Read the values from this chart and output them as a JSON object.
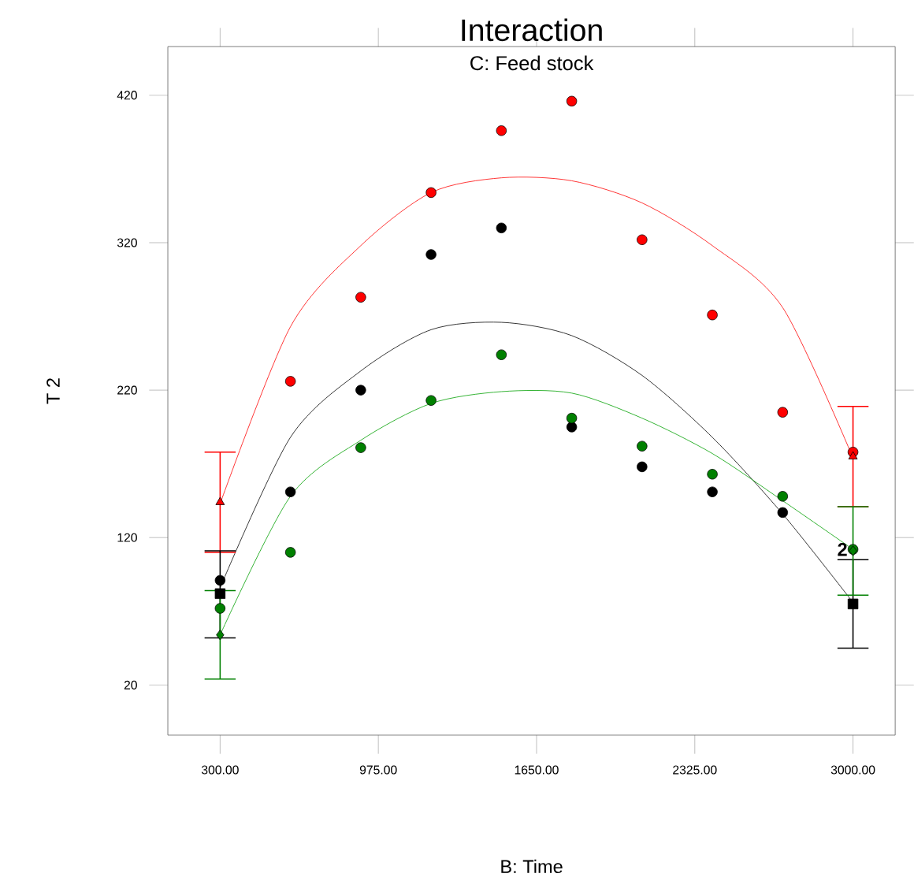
{
  "chart_data": {
    "type": "scatter",
    "title": "Interaction",
    "subtitle": "C: Feed stock",
    "xlabel": "B: Time",
    "ylabel": "T 2",
    "xlim": [
      77,
      3180
    ],
    "ylim": [
      -14,
      453
    ],
    "xticks": [
      {
        "value": 300,
        "label": "300.00"
      },
      {
        "value": 975,
        "label": "975.00"
      },
      {
        "value": 1650,
        "label": "1650.00"
      },
      {
        "value": 2325,
        "label": "2325.00"
      },
      {
        "value": 3000,
        "label": "3000.00"
      }
    ],
    "yticks": [
      20,
      120,
      220,
      320,
      420
    ],
    "grid": false,
    "annotations": [
      {
        "text": "2",
        "x": 3000,
        "y": 112
      }
    ],
    "series": [
      {
        "type": "line",
        "marker": "none",
        "color": "#ff0000",
        "x": [
          300,
          600,
          900,
          1200,
          1500,
          1800,
          2100,
          2400,
          2700,
          3000
        ],
        "values": [
          143,
          263,
          318,
          354,
          364,
          362,
          347,
          318,
          276,
          174
        ]
      },
      {
        "type": "line",
        "marker": "none",
        "color": "#000000",
        "x": [
          300,
          600,
          900,
          1200,
          1500,
          1800,
          2100,
          2400,
          2700,
          3000
        ],
        "values": [
          86,
          188,
          233,
          261,
          266,
          257,
          230,
          188,
          136,
          76
        ]
      },
      {
        "type": "line",
        "marker": "none",
        "color": "#00a000",
        "x": [
          300,
          600,
          900,
          1200,
          1500,
          1800,
          2100,
          2400,
          2700,
          3000
        ],
        "values": [
          54,
          148,
          186,
          211,
          219,
          218,
          201,
          177,
          145,
          112
        ]
      },
      {
        "marker": "circle",
        "color": "#ff0000",
        "x": [
          600,
          900,
          1200,
          1500,
          1800,
          2100,
          2400,
          2700,
          3000
        ],
        "values": [
          226,
          283,
          354,
          396,
          416,
          322,
          271,
          205,
          178
        ]
      },
      {
        "marker": "circle",
        "color": "#000000",
        "x": [
          300,
          600,
          900,
          1200,
          1500,
          1800,
          2100,
          2400,
          2700
        ],
        "values": [
          91,
          151,
          220,
          312,
          330,
          195,
          168,
          151,
          137
        ]
      },
      {
        "marker": "circle",
        "color": "#008000",
        "x": [
          300,
          600,
          900,
          1200,
          1500,
          1800,
          2100,
          2400,
          2700,
          3000
        ],
        "values": [
          72,
          110,
          181,
          213,
          244,
          201,
          182,
          163,
          148,
          112
        ]
      },
      {
        "marker": "triangle",
        "color": "#ff0000",
        "x": [
          300,
          3000
        ],
        "values": [
          144,
          175
        ],
        "errors": [
          [
            110,
            178
          ],
          [
            141,
            209
          ]
        ]
      },
      {
        "marker": "square",
        "color": "#000000",
        "x": [
          300,
          3000
        ],
        "values": [
          82,
          75
        ],
        "errors": [
          [
            52,
            111
          ],
          [
            45,
            105
          ]
        ]
      },
      {
        "marker": "diamond",
        "color": "#008000",
        "x": [
          300,
          3000
        ],
        "values": [
          54,
          111
        ],
        "errors": [
          [
            24,
            84
          ],
          [
            81,
            141
          ]
        ]
      }
    ]
  }
}
